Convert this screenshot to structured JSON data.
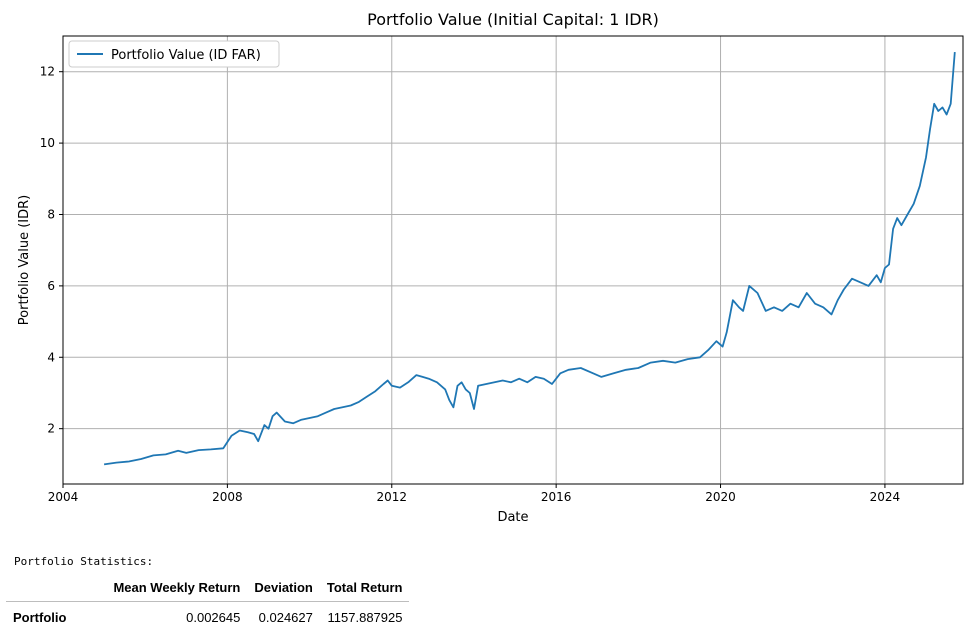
{
  "chart_data": {
    "type": "line",
    "title": "Portfolio Value (Initial Capital: 1 IDR)",
    "xlabel": "Date",
    "ylabel": "Portfolio Value (IDR)",
    "xlim": [
      2004.0,
      2025.9
    ],
    "ylim": [
      0.45,
      13.0
    ],
    "xticks": [
      2004,
      2008,
      2012,
      2016,
      2020,
      2024
    ],
    "yticks": [
      2,
      4,
      6,
      8,
      10,
      12
    ],
    "grid": true,
    "legend_position": "top-left",
    "series": [
      {
        "name": "Portfolio Value (ID FAR)",
        "color": "#1f77b4",
        "x": [
          2005.0,
          2005.3,
          2005.6,
          2005.9,
          2006.2,
          2006.5,
          2006.8,
          2007.0,
          2007.3,
          2007.6,
          2007.9,
          2008.1,
          2008.3,
          2008.5,
          2008.65,
          2008.75,
          2008.9,
          2009.0,
          2009.1,
          2009.2,
          2009.4,
          2009.6,
          2009.8,
          2010.0,
          2010.2,
          2010.4,
          2010.6,
          2010.8,
          2011.0,
          2011.2,
          2011.4,
          2011.6,
          2011.8,
          2011.9,
          2012.0,
          2012.2,
          2012.4,
          2012.6,
          2012.75,
          2012.9,
          2013.1,
          2013.3,
          2013.4,
          2013.5,
          2013.6,
          2013.7,
          2013.8,
          2013.9,
          2014.0,
          2014.1,
          2014.3,
          2014.5,
          2014.7,
          2014.9,
          2015.1,
          2015.3,
          2015.5,
          2015.7,
          2015.9,
          2016.1,
          2016.3,
          2016.6,
          2016.9,
          2017.1,
          2017.4,
          2017.7,
          2018.0,
          2018.3,
          2018.6,
          2018.9,
          2019.2,
          2019.5,
          2019.7,
          2019.9,
          2020.05,
          2020.15,
          2020.3,
          2020.45,
          2020.55,
          2020.7,
          2020.9,
          2021.1,
          2021.3,
          2021.5,
          2021.7,
          2021.9,
          2022.1,
          2022.3,
          2022.5,
          2022.7,
          2022.85,
          2023.0,
          2023.2,
          2023.4,
          2023.6,
          2023.8,
          2023.9,
          2024.0,
          2024.1,
          2024.2,
          2024.3,
          2024.4,
          2024.55,
          2024.7,
          2024.85,
          2025.0,
          2025.1,
          2025.2,
          2025.3,
          2025.4,
          2025.5,
          2025.6,
          2025.7
        ],
        "y": [
          1.0,
          1.05,
          1.08,
          1.15,
          1.25,
          1.28,
          1.38,
          1.32,
          1.4,
          1.42,
          1.45,
          1.8,
          1.95,
          1.9,
          1.85,
          1.65,
          2.1,
          2.0,
          2.35,
          2.45,
          2.2,
          2.15,
          2.25,
          2.3,
          2.35,
          2.45,
          2.55,
          2.6,
          2.65,
          2.75,
          2.9,
          3.05,
          3.25,
          3.35,
          3.2,
          3.15,
          3.3,
          3.5,
          3.45,
          3.4,
          3.3,
          3.1,
          2.8,
          2.6,
          3.2,
          3.3,
          3.1,
          3.0,
          2.55,
          3.2,
          3.25,
          3.3,
          3.35,
          3.3,
          3.4,
          3.3,
          3.45,
          3.4,
          3.25,
          3.55,
          3.65,
          3.7,
          3.55,
          3.45,
          3.55,
          3.65,
          3.7,
          3.85,
          3.9,
          3.85,
          3.95,
          4.0,
          4.2,
          4.45,
          4.3,
          4.7,
          5.6,
          5.4,
          5.3,
          6.0,
          5.8,
          5.3,
          5.4,
          5.3,
          5.5,
          5.4,
          5.8,
          5.5,
          5.4,
          5.2,
          5.6,
          5.9,
          6.2,
          6.1,
          6.0,
          6.3,
          6.1,
          6.5,
          6.6,
          7.6,
          7.9,
          7.7,
          8.0,
          8.3,
          8.8,
          9.6,
          10.4,
          11.1,
          10.9,
          11.0,
          10.8,
          11.1,
          12.55
        ]
      }
    ]
  },
  "stats": {
    "heading": "Portfolio Statistics:",
    "columns": [
      "Mean Weekly Return",
      "Deviation",
      "Total Return"
    ],
    "row_label": "Portfolio",
    "values": [
      "0.002645",
      "0.024627",
      "1157.887925"
    ]
  }
}
